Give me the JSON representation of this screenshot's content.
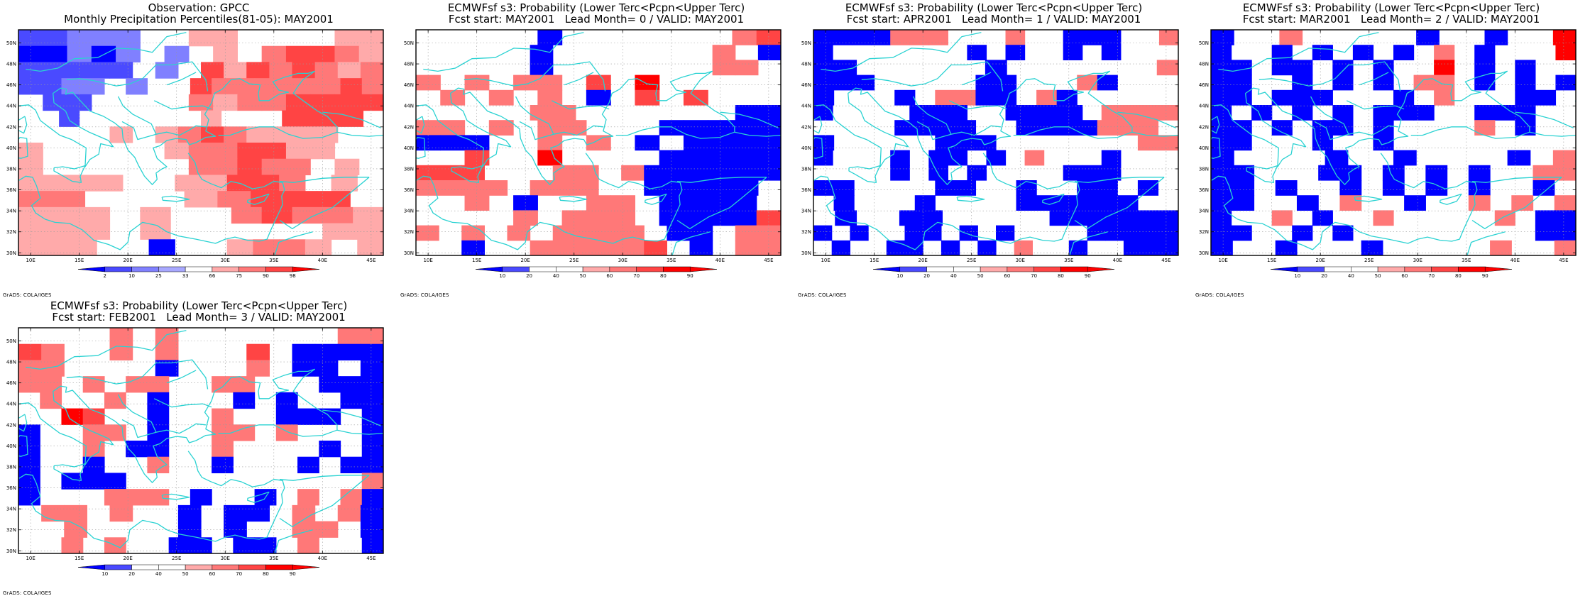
{
  "credit": "GrADS: COLA/IGES",
  "chart_data": [
    {
      "type": "heatmap",
      "title_line1": "Observation: GPCC",
      "title_line2": "Monthly Precipitation Percentiles(81-05): MAY2001",
      "xlim": [
        8.75,
        46.25
      ],
      "ylim": [
        29.75,
        51.25
      ],
      "x_ticks": [
        "10E",
        "15E",
        "20E",
        "25E",
        "30E",
        "35E",
        "40E",
        "45E"
      ],
      "y_ticks": [
        "30N",
        "32N",
        "34N",
        "36N",
        "38N",
        "40N",
        "42N",
        "44N",
        "46N",
        "48N",
        "50N"
      ],
      "colorbar_labels": [
        "2",
        "10",
        "25",
        "33",
        "66",
        "75",
        "90",
        "98"
      ],
      "colorbar_colors": [
        "#0000ff",
        "#4a4aff",
        "#8080ff",
        "#a8a8ff",
        "#ffffff",
        "#ffaaaa",
        "#ff7878",
        "#ff4444",
        "#ff0000"
      ],
      "grid_rows_north_to_south": [
        "22333..66...566",
        "11313.3.6.78876",
        "22222.3.86878767",
        "2233.3..877777787",
        ".22....76778888",
        "..2......6...8888.",
        "....6.67876666..",
        "6.....6778866..",
        "6......77877.6.",
        "6666..66887.6.",
        "77...67888.",
        "666.6..78776",
        "666.6.....66",
        "666..1..6776.6"
      ]
    },
    {
      "type": "heatmap",
      "title_line1": "ECMWFsf s3: Probability (Lower Terc<Pcpn<Upper Terc)",
      "title_line2": "Fcst start: MAY2001   Lead Month= 0 / VALID: MAY2001",
      "xlim": [
        8.75,
        46.25
      ],
      "ylim": [
        29.75,
        51.25
      ],
      "x_ticks": [
        "10E",
        "15E",
        "20E",
        "25E",
        "30E",
        "35E",
        "40E",
        "45E"
      ],
      "y_ticks": [
        "30N",
        "32N",
        "34N",
        "36N",
        "38N",
        "40N",
        "42N",
        "44N",
        "46N",
        "48N",
        "50N"
      ],
      "colorbar_labels": [
        "10",
        "20",
        "40",
        "50",
        "60",
        "70",
        "80",
        "90"
      ],
      "colorbar_colors": [
        "#0000ff",
        "#4a4aff",
        "#ffffff",
        "#ffffff",
        "#ffaaaa",
        "#ff7878",
        "#ff4444",
        "#ff0000",
        "#ff0000"
      ],
      "grid_rows_north_to_south": [
        ".....1.......67",
        ".....1.......6.1",
        ".....1.......66.",
        "6.6.66.7.8.....",
        ".6.6.6.1.7.7...",
        ".....66.......11",
        "66.6.66...11111",
        "111..6.6.1.1111",
        "..7..8....11111",
        "777...66.6111111",
        "6666.666..11111.",
        "..6.1..66.1111.",
        "....6.666.11117",
        "6.6.6.6666.11.66",
        "..1..666667.1.66"
      ]
    },
    {
      "type": "heatmap",
      "title_line1": "ECMWFsf s3: Probability (Lower Terc<Pcpn<Upper Terc)",
      "title_line2": "Fcst start: APR2001   Lead Month= 1 / VALID: MAY2001",
      "xlim": [
        8.75,
        46.25
      ],
      "ylim": [
        29.75,
        51.25
      ],
      "x_ticks": [
        "10E",
        "15E",
        "20E",
        "25E",
        "30E",
        "35E",
        "40E",
        "45E"
      ],
      "y_ticks": [
        "30N",
        "32N",
        "34N",
        "36N",
        "38N",
        "40N",
        "42N",
        "44N",
        "46N",
        "48N",
        "50N"
      ],
      "colorbar_labels": [
        "10",
        "20",
        "40",
        "50",
        "60",
        "70",
        "80",
        "90"
      ],
      "colorbar_colors": [
        "#0000ff",
        "#4a4aff",
        "#ffffff",
        "#ffffff",
        "#ffaaaa",
        "#ff7878",
        "#ff4444",
        "#ff0000",
        "#ff0000"
      ],
      "grid_rows_north_to_south": [
        "1111666...6..111..6",
        "1.......1.1..1.1...",
        "11......1.......6",
        "111.....11...61...",
        "1...1.6611.61.....",
        "1....111..1111.6666",
        "....1111..1111666.",
        "1.....111.......66",
        "1...1.11.1.6...1...",
        "....1.1.1....111...",
        "11....11..1..11.1.",
        ".1...1....111111..",
        ".1..11.....111111",
        "1.1..11.1.1....11111",
        ".1..11.1.1.6..1..111"
      ]
    },
    {
      "type": "heatmap",
      "title_line1": "ECMWFsf s3: Probability (Lower Terc<Pcpn<Upper Terc)",
      "title_line2": "Fcst start: MAR2001   Lead Month= 2 / VALID: MAY2001",
      "xlim": [
        8.75,
        46.25
      ],
      "ylim": [
        29.75,
        51.25
      ],
      "x_ticks": [
        "10E",
        "15E",
        "20E",
        "25E",
        "30E",
        "35E",
        "40E",
        "45E"
      ],
      "y_ticks": [
        "30N",
        "32N",
        "34N",
        "36N",
        "38N",
        "40N",
        "42N",
        "44N",
        "46N",
        "48N",
        "50N"
      ],
      "colorbar_labels": [
        "10",
        "20",
        "40",
        "50",
        "60",
        "70",
        "80",
        "90"
      ],
      "colorbar_colors": [
        "#0000ff",
        "#4a4aff",
        "#ffffff",
        "#ffffff",
        "#ffaaaa",
        "#ff7878",
        "#ff4444",
        "#ff0000",
        "#ff0000"
      ],
      "grid_rows_north_to_south": [
        "1..6.....1..1..8",
        "1..1.1.1.1.6.1...8",
        "11.11.1.1..8.1.1..",
        "11..1.1.1.66.1.1.1",
        "11.111...1.6...11.",
        "1.1.1.1.111..111..",
        "11.1.11.1....6.1..",
        "11...1..1.........",
        "1....1..1....1.6",
        "11...11.1.1.1..66",
        "11.1..1.1.1.1..1.",
        "11..1.6..1..6.6.6",
        "1..6.1..6.....6.11",
        "11..1.1.........11",
        "1..1...1.....6..6"
      ]
    },
    {
      "type": "heatmap",
      "title_line1": "ECMWFsf s3: Probability (Lower Terc<Pcpn<Upper Terc)",
      "title_line2": "Fcst start: FEB2001   Lead Month= 3 / VALID: MAY2001",
      "xlim": [
        8.75,
        46.25
      ],
      "ylim": [
        29.75,
        51.25
      ],
      "x_ticks": [
        "10E",
        "15E",
        "20E",
        "25E",
        "30E",
        "35E",
        "40E",
        "45E"
      ],
      "y_ticks": [
        "30N",
        "32N",
        "34N",
        "36N",
        "38N",
        "40N",
        "42N",
        "44N",
        "46N",
        "48N",
        "50N"
      ],
      "colorbar_labels": [
        "10",
        "20",
        "40",
        "50",
        "60",
        "70",
        "80",
        "90"
      ],
      "colorbar_colors": [
        "#0000ff",
        "#4a4aff",
        "#ffffff",
        "#ffffff",
        "#ffaaaa",
        "#ff7878",
        "#ff4444",
        "#ff0000",
        "#ff0000"
      ],
      "grid_rows_north_to_south": [
        "....6.6.......66",
        "76..6.6...7.1111",
        "66....1...6.11.1",
        "66.6.66..66...111",
        ".6..6.1...1.1..11",
        "..87..1..6..111.1",
        "1..66.1..66.6...1",
        "1..6.11..6....1.1",
        "1..1..6..1...1.11",
        "1.111...........6",
        "1...666.1..1.6.61",
        ".66.6..1.11.6.61",
        "..6....1.1..66.1",
        "..6.6..11.11.6..1"
      ]
    }
  ]
}
